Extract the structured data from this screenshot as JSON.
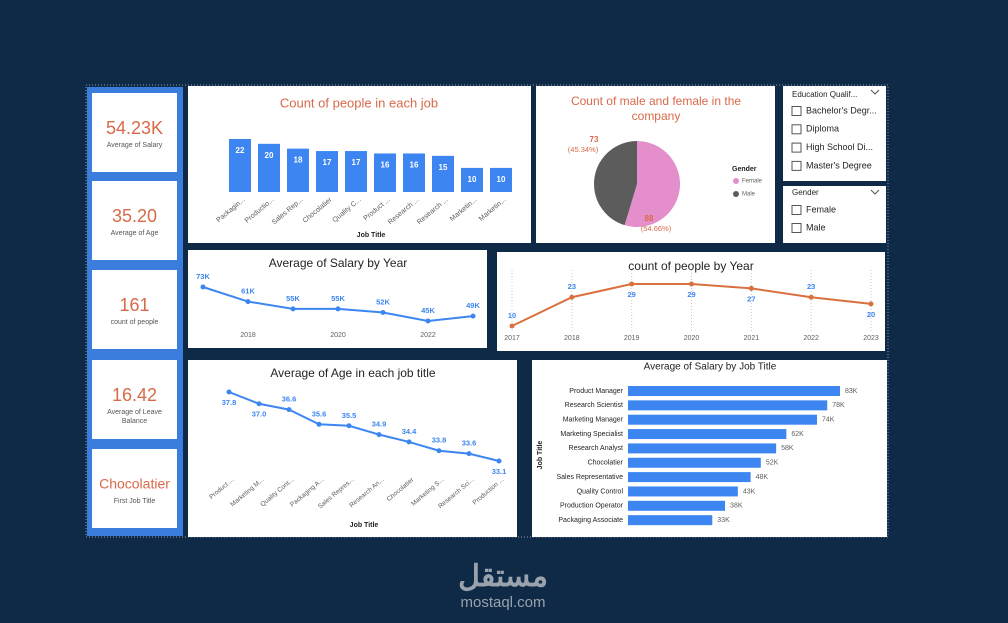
{
  "kpis": [
    {
      "value": "54.23K",
      "label": "Average of Salary"
    },
    {
      "value": "35.20",
      "label": "Average of Age"
    },
    {
      "value": "161",
      "label": "count of people"
    },
    {
      "value": "16.42",
      "label": "Average of Leave Balance"
    },
    {
      "value": "Chocolatier",
      "label": "First Job Title"
    }
  ],
  "slicers": [
    {
      "title": "Education Qualif...",
      "options": [
        "Bachelor's Degr...",
        "Diploma",
        "High School Di...",
        "Master's Degree"
      ]
    },
    {
      "title": "Gender",
      "options": [
        "Female",
        "Male"
      ]
    }
  ],
  "chart_data": [
    {
      "type": "bar",
      "title": "Count of people in each job",
      "title_color": "#d9694a",
      "categories": [
        "Packagin...",
        "Productio...",
        "Sales Rep...",
        "Chocolatier",
        "Quality C...",
        "Product ...",
        "Research ...",
        "Research ...",
        "Marketin...",
        "Marketin..."
      ],
      "values": [
        22,
        20,
        18,
        17,
        17,
        16,
        16,
        15,
        10,
        10
      ],
      "color": "#3d86f2",
      "xlabel": "Job Title"
    },
    {
      "type": "pie",
      "title": "Count of male and female in the company",
      "title_color": "#d9694a",
      "categories": [
        "Female",
        "Male"
      ],
      "values": [
        88,
        73
      ],
      "colors": [
        "#e48fcb",
        "#5c5c5c"
      ],
      "shares": [
        54.66,
        45.34
      ],
      "share_labels": [
        "(54.66%)",
        "(45.34%)"
      ],
      "legend_title": "Gender",
      "legend": "right"
    },
    {
      "type": "line",
      "title": "Average of Salary by Year",
      "title_color": "#252423",
      "x": [
        2017,
        2018,
        2019,
        2020,
        2021,
        2022,
        2023
      ],
      "values": [
        73000,
        61000,
        55000,
        55000,
        52000,
        45000,
        49000
      ],
      "value_labels": [
        "73K",
        "61K",
        "55K",
        "55K",
        "52K",
        "45K",
        "49K"
      ],
      "xlim": [
        2017,
        2023
      ],
      "xticks": [
        2018,
        2020,
        2022
      ],
      "color": "#3d86f2",
      "label_color": "#3d86f2"
    },
    {
      "type": "line",
      "title": "count of people by Year",
      "title_color": "#252423",
      "x": [
        2017,
        2018,
        2019,
        2020,
        2021,
        2022,
        2023
      ],
      "values": [
        10,
        23,
        29,
        29,
        27,
        23,
        20
      ],
      "xlim": [
        2017,
        2023
      ],
      "xticks": [
        2017,
        2018,
        2019,
        2020,
        2021,
        2022,
        2023
      ],
      "grid": "x",
      "color": "#d9703f",
      "label_color": "#3d86f2"
    },
    {
      "type": "line",
      "title": "Average of Age in each job title",
      "title_color": "#252423",
      "categories": [
        "Product ...",
        "Marketing M...",
        "Quality Cont...",
        "Packaging A...",
        "Sales Repres...",
        "Research An...",
        "Chocolatier",
        "Marketing S...",
        "Research Sci...",
        "Production ..."
      ],
      "values": [
        37.8,
        37.0,
        36.6,
        35.6,
        35.5,
        34.9,
        34.4,
        33.8,
        33.6,
        33.1
      ],
      "value_labels": [
        "37.8",
        "37.0",
        "36.6",
        "35.6",
        "35.5",
        "34.9",
        "34.4",
        "33.8",
        "33.6",
        "33.1"
      ],
      "xlabel": "Job Title",
      "color": "#3d86f2",
      "label_color": "#3d86f2"
    },
    {
      "type": "barh",
      "title": "Average of Salary by Job Title",
      "title_color": "#252423",
      "categories": [
        "Product Manager",
        "Research Scientist",
        "Marketing Manager",
        "Marketing Specialist",
        "Research Analyst",
        "Chocolatier",
        "Sales Representative",
        "Quality Control",
        "Production Operator",
        "Packaging Associate"
      ],
      "values": [
        83000,
        78000,
        74000,
        62000,
        58000,
        52000,
        48000,
        43000,
        38000,
        33000
      ],
      "value_labels": [
        "83K",
        "78K",
        "74K",
        "62K",
        "58K",
        "52K",
        "48K",
        "43K",
        "38K",
        "33K"
      ],
      "ylabel": "Job Title",
      "color": "#3d86f2"
    }
  ],
  "watermark": {
    "brand": "مستقل",
    "url": "mostaql.com"
  }
}
